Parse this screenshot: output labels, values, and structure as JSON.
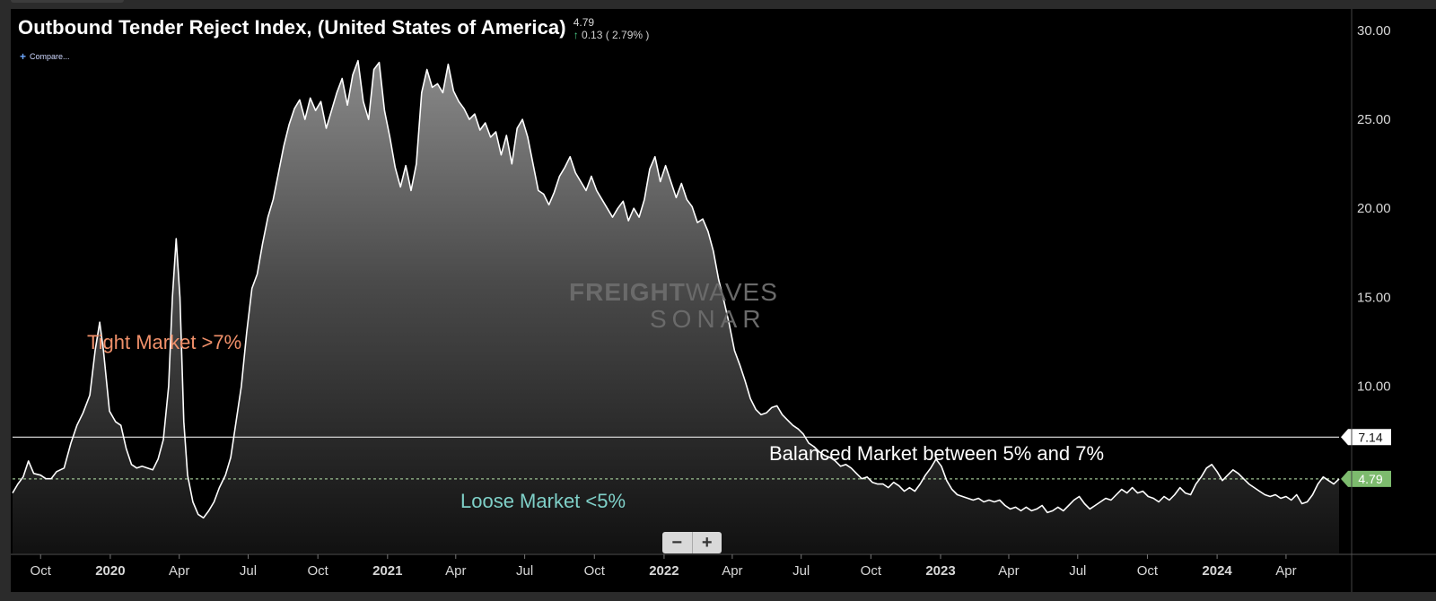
{
  "title": "Outbound Tender Reject Index, (United States of America)",
  "quote": {
    "last": "4.79",
    "change": "0.13 ( 2.79% )",
    "direction": "up"
  },
  "compare_label": "Compare...",
  "watermark": {
    "line1_bold": "FREIGHT",
    "line1_light": "WAVES",
    "line2": "SONAR"
  },
  "annotations": {
    "tight": "Tight Market >7%",
    "balanced": "Balanced Market between 5% and 7%",
    "loose": "Loose Market <5%"
  },
  "zoom": {
    "minus": "−",
    "plus": "+"
  },
  "colors": {
    "background": "#000000",
    "line": "#ffffff",
    "last_badge": "#7dbb6e",
    "up": "#4cd18b"
  },
  "chart_data": {
    "type": "area",
    "title": "Outbound Tender Reject Index, (United States of America)",
    "y_unit": "%",
    "ylim": [
      0.6,
      30.6
    ],
    "y_axis_side": "right",
    "y_ticks": [
      "10.00",
      "15.00",
      "20.00",
      "25.00",
      "30.00"
    ],
    "x_ticks": [
      {
        "label": "Oct",
        "date": "2019-10-01"
      },
      {
        "label": "2020",
        "date": "2020-01-01"
      },
      {
        "label": "Apr",
        "date": "2020-04-01"
      },
      {
        "label": "Jul",
        "date": "2020-07-01"
      },
      {
        "label": "Oct",
        "date": "2020-10-01"
      },
      {
        "label": "2021",
        "date": "2021-01-01"
      },
      {
        "label": "Apr",
        "date": "2021-04-01"
      },
      {
        "label": "Jul",
        "date": "2021-07-01"
      },
      {
        "label": "Oct",
        "date": "2021-10-01"
      },
      {
        "label": "2022",
        "date": "2022-01-01"
      },
      {
        "label": "Apr",
        "date": "2022-04-01"
      },
      {
        "label": "Jul",
        "date": "2022-07-01"
      },
      {
        "label": "Oct",
        "date": "2022-10-01"
      },
      {
        "label": "2023",
        "date": "2023-01-01"
      },
      {
        "label": "Apr",
        "date": "2023-04-01"
      },
      {
        "label": "Jul",
        "date": "2023-07-01"
      },
      {
        "label": "Oct",
        "date": "2023-10-01"
      },
      {
        "label": "2024",
        "date": "2024-01-01"
      },
      {
        "label": "Apr",
        "date": "2024-04-01"
      }
    ],
    "x_range": [
      "2019-08-25",
      "2024-06-10"
    ],
    "reference_lines": [
      {
        "value": 7.14,
        "label": "7.14",
        "style": "solid"
      },
      {
        "value": 4.79,
        "label": "4.79",
        "style": "dashed"
      }
    ],
    "series": [
      {
        "points": [
          [
            "2019-08-25",
            4.0
          ],
          [
            "2019-09-01",
            4.5
          ],
          [
            "2019-09-08",
            4.9
          ],
          [
            "2019-09-15",
            5.8
          ],
          [
            "2019-09-22",
            5.1
          ],
          [
            "2019-10-01",
            5.0
          ],
          [
            "2019-10-08",
            4.8
          ],
          [
            "2019-10-15",
            4.8
          ],
          [
            "2019-10-22",
            5.2
          ],
          [
            "2019-11-01",
            5.4
          ],
          [
            "2019-11-10",
            6.8
          ],
          [
            "2019-11-18",
            7.8
          ],
          [
            "2019-11-26",
            8.5
          ],
          [
            "2019-12-05",
            9.5
          ],
          [
            "2019-12-12",
            12.0
          ],
          [
            "2019-12-18",
            13.6
          ],
          [
            "2019-12-23",
            12.0
          ],
          [
            "2019-12-31",
            8.6
          ],
          [
            "2020-01-08",
            8.0
          ],
          [
            "2020-01-15",
            7.8
          ],
          [
            "2020-01-22",
            6.5
          ],
          [
            "2020-01-29",
            5.6
          ],
          [
            "2020-02-05",
            5.4
          ],
          [
            "2020-02-12",
            5.5
          ],
          [
            "2020-02-19",
            5.4
          ],
          [
            "2020-02-26",
            5.3
          ],
          [
            "2020-03-04",
            5.9
          ],
          [
            "2020-03-11",
            7.0
          ],
          [
            "2020-03-18",
            10.0
          ],
          [
            "2020-03-23",
            15.0
          ],
          [
            "2020-03-28",
            18.3
          ],
          [
            "2020-04-02",
            15.0
          ],
          [
            "2020-04-07",
            8.0
          ],
          [
            "2020-04-12",
            5.0
          ],
          [
            "2020-04-19",
            3.5
          ],
          [
            "2020-04-26",
            2.8
          ],
          [
            "2020-05-03",
            2.6
          ],
          [
            "2020-05-10",
            3.0
          ],
          [
            "2020-05-17",
            3.5
          ],
          [
            "2020-05-24",
            4.3
          ],
          [
            "2020-06-01",
            5.0
          ],
          [
            "2020-06-08",
            6.0
          ],
          [
            "2020-06-15",
            8.0
          ],
          [
            "2020-06-22",
            10.0
          ],
          [
            "2020-06-29",
            13.0
          ],
          [
            "2020-07-06",
            15.5
          ],
          [
            "2020-07-13",
            16.3
          ],
          [
            "2020-07-20",
            18.0
          ],
          [
            "2020-07-27",
            19.5
          ],
          [
            "2020-08-03",
            20.5
          ],
          [
            "2020-08-10",
            22.0
          ],
          [
            "2020-08-17",
            23.5
          ],
          [
            "2020-08-24",
            24.7
          ],
          [
            "2020-08-31",
            25.6
          ],
          [
            "2020-09-07",
            26.1
          ],
          [
            "2020-09-14",
            25.0
          ],
          [
            "2020-09-21",
            26.2
          ],
          [
            "2020-09-28",
            25.5
          ],
          [
            "2020-10-05",
            26.0
          ],
          [
            "2020-10-12",
            24.5
          ],
          [
            "2020-10-19",
            25.5
          ],
          [
            "2020-10-26",
            26.5
          ],
          [
            "2020-11-02",
            27.3
          ],
          [
            "2020-11-09",
            25.8
          ],
          [
            "2020-11-16",
            27.5
          ],
          [
            "2020-11-23",
            28.3
          ],
          [
            "2020-11-30",
            26.0
          ],
          [
            "2020-12-07",
            25.0
          ],
          [
            "2020-12-14",
            27.8
          ],
          [
            "2020-12-21",
            28.2
          ],
          [
            "2020-12-28",
            25.5
          ],
          [
            "2021-01-04",
            24.0
          ],
          [
            "2021-01-11",
            22.3
          ],
          [
            "2021-01-18",
            21.2
          ],
          [
            "2021-01-25",
            22.4
          ],
          [
            "2021-02-01",
            21.0
          ],
          [
            "2021-02-08",
            22.5
          ],
          [
            "2021-02-15",
            26.5
          ],
          [
            "2021-02-22",
            27.8
          ],
          [
            "2021-03-01",
            26.8
          ],
          [
            "2021-03-08",
            27.0
          ],
          [
            "2021-03-15",
            26.5
          ],
          [
            "2021-03-22",
            28.1
          ],
          [
            "2021-03-29",
            26.6
          ],
          [
            "2021-04-05",
            26.0
          ],
          [
            "2021-04-12",
            25.6
          ],
          [
            "2021-04-19",
            25.0
          ],
          [
            "2021-04-26",
            25.3
          ],
          [
            "2021-05-03",
            24.4
          ],
          [
            "2021-05-10",
            24.8
          ],
          [
            "2021-05-17",
            24.0
          ],
          [
            "2021-05-24",
            24.3
          ],
          [
            "2021-05-31",
            23.0
          ],
          [
            "2021-06-07",
            24.1
          ],
          [
            "2021-06-14",
            22.5
          ],
          [
            "2021-06-21",
            24.5
          ],
          [
            "2021-06-28",
            25.0
          ],
          [
            "2021-07-05",
            24.0
          ],
          [
            "2021-07-12",
            22.5
          ],
          [
            "2021-07-19",
            21.0
          ],
          [
            "2021-07-26",
            20.8
          ],
          [
            "2021-08-02",
            20.2
          ],
          [
            "2021-08-09",
            20.9
          ],
          [
            "2021-08-16",
            21.8
          ],
          [
            "2021-08-23",
            22.3
          ],
          [
            "2021-08-30",
            22.9
          ],
          [
            "2021-09-06",
            22.0
          ],
          [
            "2021-09-13",
            21.5
          ],
          [
            "2021-09-20",
            21.0
          ],
          [
            "2021-09-27",
            21.8
          ],
          [
            "2021-10-04",
            21.0
          ],
          [
            "2021-10-11",
            20.5
          ],
          [
            "2021-10-18",
            20.0
          ],
          [
            "2021-10-25",
            19.5
          ],
          [
            "2021-11-01",
            20.0
          ],
          [
            "2021-11-08",
            20.4
          ],
          [
            "2021-11-15",
            19.3
          ],
          [
            "2021-11-22",
            20.0
          ],
          [
            "2021-11-29",
            19.5
          ],
          [
            "2021-12-06",
            20.5
          ],
          [
            "2021-12-13",
            22.2
          ],
          [
            "2021-12-20",
            22.9
          ],
          [
            "2021-12-27",
            21.5
          ],
          [
            "2022-01-03",
            22.4
          ],
          [
            "2022-01-10",
            21.5
          ],
          [
            "2022-01-17",
            20.6
          ],
          [
            "2022-01-24",
            21.4
          ],
          [
            "2022-01-31",
            20.5
          ],
          [
            "2022-02-07",
            20.1
          ],
          [
            "2022-02-14",
            19.2
          ],
          [
            "2022-02-21",
            19.4
          ],
          [
            "2022-02-28",
            18.7
          ],
          [
            "2022-03-07",
            17.6
          ],
          [
            "2022-03-14",
            16.0
          ],
          [
            "2022-03-21",
            14.8
          ],
          [
            "2022-03-28",
            13.5
          ],
          [
            "2022-04-04",
            12.0
          ],
          [
            "2022-04-11",
            11.2
          ],
          [
            "2022-04-18",
            10.3
          ],
          [
            "2022-04-25",
            9.3
          ],
          [
            "2022-05-02",
            8.7
          ],
          [
            "2022-05-09",
            8.4
          ],
          [
            "2022-05-16",
            8.5
          ],
          [
            "2022-05-23",
            8.8
          ],
          [
            "2022-05-30",
            8.9
          ],
          [
            "2022-06-06",
            8.4
          ],
          [
            "2022-06-13",
            8.1
          ],
          [
            "2022-06-20",
            7.8
          ],
          [
            "2022-06-27",
            7.6
          ],
          [
            "2022-07-04",
            7.3
          ],
          [
            "2022-07-11",
            6.8
          ],
          [
            "2022-07-18",
            6.6
          ],
          [
            "2022-07-25",
            6.3
          ],
          [
            "2022-08-01",
            6.1
          ],
          [
            "2022-08-08",
            6.0
          ],
          [
            "2022-08-15",
            5.8
          ],
          [
            "2022-08-22",
            5.5
          ],
          [
            "2022-08-29",
            5.6
          ],
          [
            "2022-09-05",
            5.4
          ],
          [
            "2022-09-12",
            5.1
          ],
          [
            "2022-09-19",
            4.8
          ],
          [
            "2022-09-26",
            4.9
          ],
          [
            "2022-10-03",
            4.6
          ],
          [
            "2022-10-10",
            4.5
          ],
          [
            "2022-10-17",
            4.5
          ],
          [
            "2022-10-24",
            4.3
          ],
          [
            "2022-10-31",
            4.6
          ],
          [
            "2022-11-07",
            4.4
          ],
          [
            "2022-11-14",
            4.1
          ],
          [
            "2022-11-21",
            4.3
          ],
          [
            "2022-11-28",
            4.1
          ],
          [
            "2022-12-05",
            4.5
          ],
          [
            "2022-12-12",
            5.0
          ],
          [
            "2022-12-19",
            5.4
          ],
          [
            "2022-12-26",
            5.9
          ],
          [
            "2023-01-02",
            5.5
          ],
          [
            "2023-01-09",
            4.7
          ],
          [
            "2023-01-16",
            4.2
          ],
          [
            "2023-01-23",
            3.9
          ],
          [
            "2023-01-30",
            3.8
          ],
          [
            "2023-02-06",
            3.7
          ],
          [
            "2023-02-13",
            3.6
          ],
          [
            "2023-02-20",
            3.7
          ],
          [
            "2023-02-27",
            3.5
          ],
          [
            "2023-03-06",
            3.6
          ],
          [
            "2023-03-13",
            3.5
          ],
          [
            "2023-03-20",
            3.6
          ],
          [
            "2023-03-27",
            3.3
          ],
          [
            "2023-04-03",
            3.1
          ],
          [
            "2023-04-10",
            3.2
          ],
          [
            "2023-04-17",
            3.0
          ],
          [
            "2023-04-24",
            3.2
          ],
          [
            "2023-05-01",
            3.0
          ],
          [
            "2023-05-08",
            3.1
          ],
          [
            "2023-05-15",
            3.3
          ],
          [
            "2023-05-22",
            2.9
          ],
          [
            "2023-05-29",
            3.0
          ],
          [
            "2023-06-05",
            3.2
          ],
          [
            "2023-06-12",
            3.0
          ],
          [
            "2023-06-19",
            3.3
          ],
          [
            "2023-06-26",
            3.6
          ],
          [
            "2023-07-03",
            3.8
          ],
          [
            "2023-07-10",
            3.4
          ],
          [
            "2023-07-17",
            3.1
          ],
          [
            "2023-07-24",
            3.3
          ],
          [
            "2023-07-31",
            3.5
          ],
          [
            "2023-08-07",
            3.7
          ],
          [
            "2023-08-14",
            3.6
          ],
          [
            "2023-08-21",
            3.9
          ],
          [
            "2023-08-28",
            4.2
          ],
          [
            "2023-09-04",
            4.0
          ],
          [
            "2023-09-11",
            4.3
          ],
          [
            "2023-09-18",
            4.0
          ],
          [
            "2023-09-25",
            4.1
          ],
          [
            "2023-10-02",
            3.8
          ],
          [
            "2023-10-09",
            3.7
          ],
          [
            "2023-10-16",
            3.5
          ],
          [
            "2023-10-23",
            3.8
          ],
          [
            "2023-10-30",
            3.6
          ],
          [
            "2023-11-06",
            3.9
          ],
          [
            "2023-11-13",
            4.3
          ],
          [
            "2023-11-20",
            4.0
          ],
          [
            "2023-11-27",
            3.9
          ],
          [
            "2023-12-04",
            4.5
          ],
          [
            "2023-12-11",
            4.9
          ],
          [
            "2023-12-18",
            5.4
          ],
          [
            "2023-12-25",
            5.6
          ],
          [
            "2024-01-01",
            5.2
          ],
          [
            "2024-01-08",
            4.7
          ],
          [
            "2024-01-15",
            5.0
          ],
          [
            "2024-01-22",
            5.3
          ],
          [
            "2024-01-29",
            5.1
          ],
          [
            "2024-02-05",
            4.8
          ],
          [
            "2024-02-12",
            4.5
          ],
          [
            "2024-02-19",
            4.3
          ],
          [
            "2024-02-26",
            4.1
          ],
          [
            "2024-03-04",
            3.9
          ],
          [
            "2024-03-11",
            3.8
          ],
          [
            "2024-03-18",
            3.9
          ],
          [
            "2024-03-25",
            3.7
          ],
          [
            "2024-04-01",
            3.8
          ],
          [
            "2024-04-08",
            3.6
          ],
          [
            "2024-04-15",
            3.9
          ],
          [
            "2024-04-22",
            3.4
          ],
          [
            "2024-04-29",
            3.5
          ],
          [
            "2024-05-06",
            3.9
          ],
          [
            "2024-05-13",
            4.5
          ],
          [
            "2024-05-20",
            4.9
          ],
          [
            "2024-05-27",
            4.7
          ],
          [
            "2024-06-03",
            4.5
          ],
          [
            "2024-06-10",
            4.79
          ]
        ]
      }
    ]
  }
}
